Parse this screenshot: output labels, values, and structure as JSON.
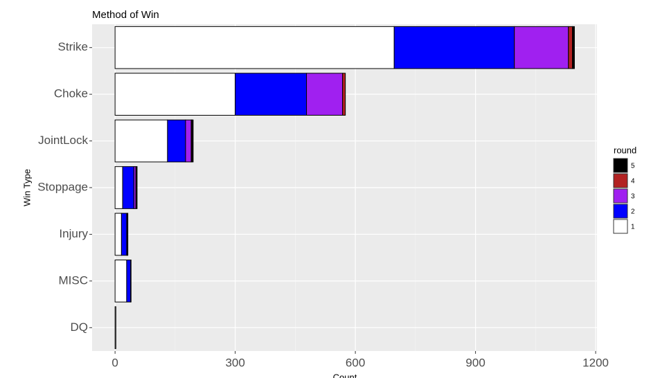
{
  "chart_data": {
    "type": "stacked-barh",
    "title": "Method of Win",
    "x_label": "Count",
    "y_label": "Win Type",
    "categories": [
      "Strike",
      "Choke",
      "JointLock",
      "Stoppage",
      "Injury",
      "MISC",
      "DQ"
    ],
    "series": [
      {
        "name": "1",
        "color": "#ffffff",
        "values": [
          697,
          300,
          131,
          19,
          16,
          29,
          2
        ]
      },
      {
        "name": "2",
        "color": "#0000ff",
        "values": [
          300,
          178,
          45,
          28,
          13,
          10,
          0
        ]
      },
      {
        "name": "3",
        "color": "#a020f0",
        "values": [
          135,
          90,
          14,
          5,
          2,
          1,
          0
        ]
      },
      {
        "name": "4",
        "color": "#b22222",
        "values": [
          10,
          7,
          2,
          2,
          1,
          0,
          0
        ]
      },
      {
        "name": "5",
        "color": "#000000",
        "values": [
          5,
          0,
          3,
          1,
          0,
          0,
          0
        ]
      }
    ],
    "legend_title": "round",
    "xlim": [
      -57.3,
      1203.3
    ],
    "xticks": [
      0,
      300,
      600,
      900,
      1200
    ],
    "grid": true
  }
}
